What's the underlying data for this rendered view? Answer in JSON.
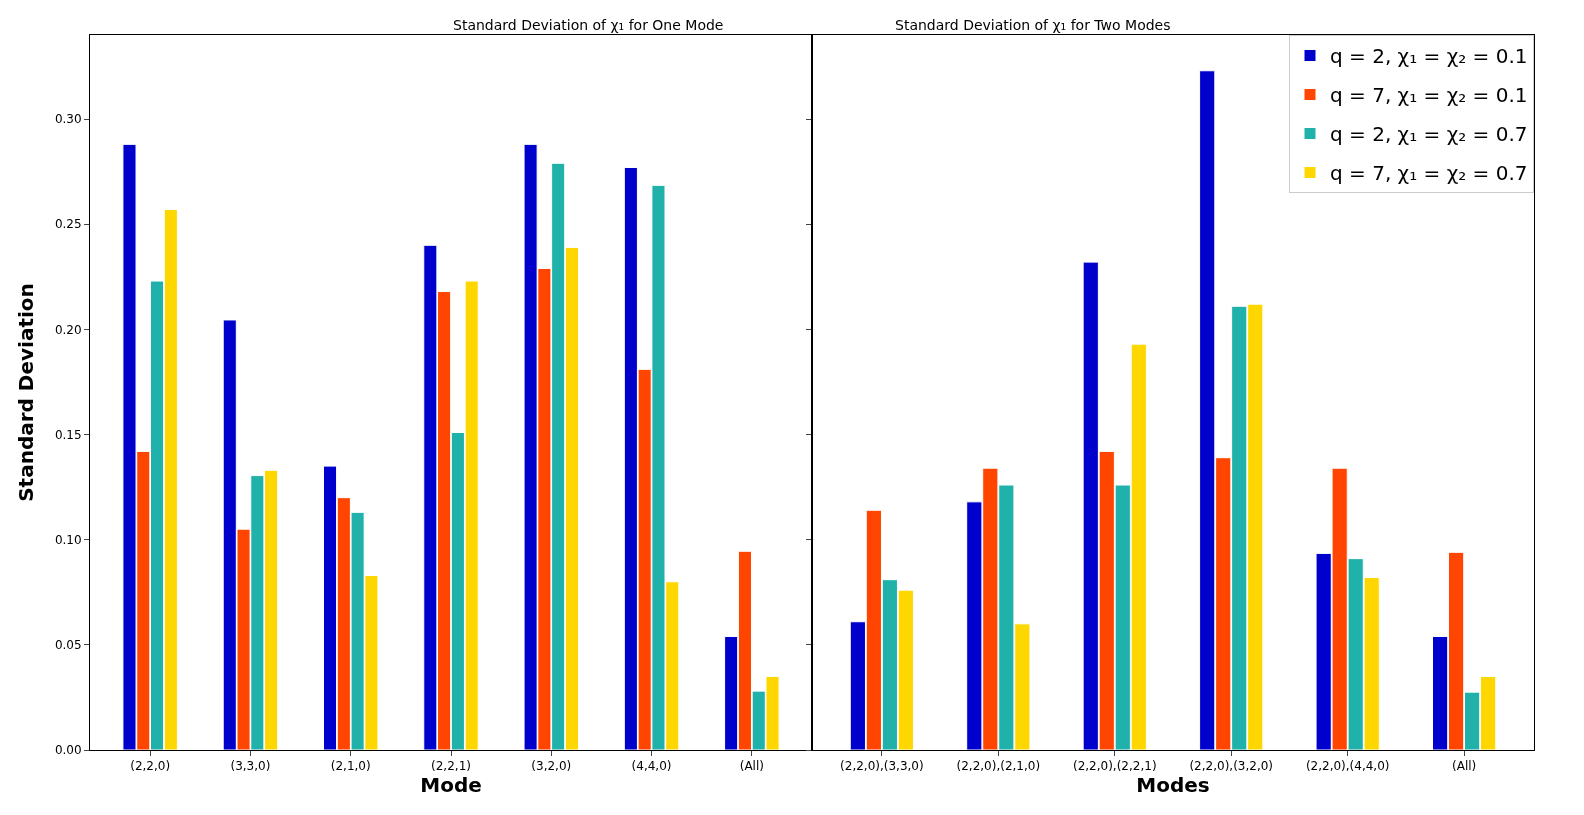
{
  "chart_data": [
    {
      "type": "bar",
      "title": "Standard Deviation of χ₁ for One Mode",
      "xlabel": "Mode",
      "ylabel": "Standard Deviation",
      "categories": [
        "(2,2,0)",
        "(3,3,0)",
        "(2,1,0)",
        "(2,2,1)",
        "(3,2,0)",
        "(4,4,0)",
        "(All)"
      ],
      "series": [
        {
          "color": "#0000cd",
          "values": [
            0.288,
            0.2045,
            0.135,
            0.24,
            0.288,
            0.277,
            0.054
          ]
        },
        {
          "color": "#ff4500",
          "values": [
            0.142,
            0.105,
            0.12,
            0.218,
            0.229,
            0.181,
            0.0945
          ]
        },
        {
          "color": "#20b2aa",
          "values": [
            0.223,
            0.1305,
            0.113,
            0.151,
            0.279,
            0.2685,
            0.028
          ]
        },
        {
          "color": "#ffd700",
          "values": [
            0.257,
            0.133,
            0.083,
            0.223,
            0.239,
            0.08,
            0.035
          ]
        }
      ],
      "ylim": [
        0,
        0.34
      ],
      "yticks": [
        {
          "value": 0,
          "label": "0.00"
        },
        {
          "value": 0.05,
          "label": "0.05"
        },
        {
          "value": 0.1,
          "label": "0.10"
        },
        {
          "value": 0.15,
          "label": "0.15"
        },
        {
          "value": 0.2,
          "label": "0.20"
        },
        {
          "value": 0.25,
          "label": "0.25"
        },
        {
          "value": 0.3,
          "label": "0.30"
        }
      ],
      "grid": false,
      "legend": false
    },
    {
      "type": "bar",
      "title": "Standard Deviation of χ₁ for Two Modes",
      "xlabel": "Modes",
      "categories": [
        "(2,2,0),(3,3,0)",
        "(2,2,0),(2,1,0)",
        "(2,2,0),(2,2,1)",
        "(2,2,0),(3,2,0)",
        "(2,2,0),(4,4,0)",
        "(All)"
      ],
      "series": [
        {
          "name": "q = 2, χ₁ = χ₂ = 0.1",
          "color": "#0000cd",
          "values": [
            0.061,
            0.118,
            0.232,
            0.323,
            0.0935,
            0.054
          ]
        },
        {
          "name": "q = 7, χ₁ = χ₂ = 0.1",
          "color": "#ff4500",
          "values": [
            0.114,
            0.134,
            0.142,
            0.139,
            0.134,
            0.094
          ]
        },
        {
          "name": "q = 2, χ₁ = χ₂ = 0.7",
          "color": "#20b2aa",
          "values": [
            0.081,
            0.126,
            0.126,
            0.211,
            0.091,
            0.0275
          ]
        },
        {
          "name": "q = 7, χ₁ = χ₂ = 0.7",
          "color": "#ffd700",
          "values": [
            0.076,
            0.06,
            0.193,
            0.212,
            0.082,
            0.035
          ]
        }
      ],
      "ylim": [
        0,
        0.34
      ],
      "yticks": [
        {
          "value": 0,
          "label": null
        },
        {
          "value": 0.05,
          "label": null
        },
        {
          "value": 0.1,
          "label": null
        },
        {
          "value": 0.15,
          "label": null
        },
        {
          "value": 0.2,
          "label": null
        },
        {
          "value": 0.25,
          "label": null
        },
        {
          "value": 0.3,
          "label": null
        }
      ],
      "grid": false,
      "legend": "top right",
      "tick_labels": "x"
    }
  ]
}
